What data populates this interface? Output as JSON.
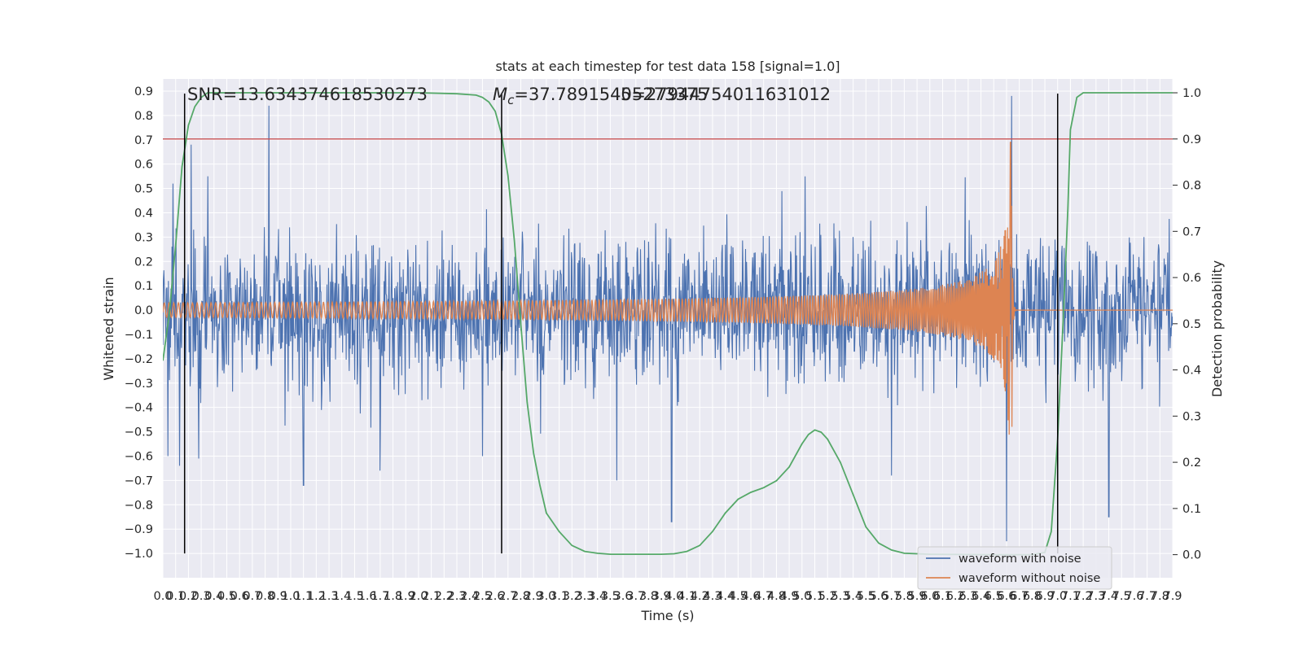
{
  "chart_data": {
    "type": "line",
    "title": "stats at each timestep for test data 158 [signal=1.0]",
    "xlabel": "Time (s)",
    "ylabel": "Whitened strain",
    "ylabel_right": "Detection probability",
    "xlim": [
      0.0,
      7.9
    ],
    "ylim": [
      -1.1,
      0.95
    ],
    "ylim_right": [
      -0.05,
      1.03
    ],
    "x_ticks": [
      0.0,
      0.1,
      0.2,
      0.3,
      0.4,
      0.5,
      0.6,
      0.7,
      0.8,
      0.9,
      1.0,
      1.1,
      1.2,
      1.3,
      1.4,
      1.5,
      1.6,
      1.7,
      1.8,
      1.9,
      2.0,
      2.1,
      2.2,
      2.3,
      2.4,
      2.5,
      2.6,
      2.7,
      2.8,
      2.9,
      3.0,
      3.1,
      3.2,
      3.3,
      3.4,
      3.5,
      3.6,
      3.7,
      3.8,
      3.9,
      4.0,
      4.1,
      4.2,
      4.3,
      4.4,
      4.5,
      4.6,
      4.7,
      4.8,
      4.9,
      5.0,
      5.1,
      5.2,
      5.3,
      5.4,
      5.5,
      5.6,
      5.7,
      5.8,
      5.9,
      6.0,
      6.1,
      6.2,
      6.3,
      6.4,
      6.5,
      6.6,
      6.7,
      6.8,
      6.9,
      7.0,
      7.1,
      7.2,
      7.3,
      7.4,
      7.5,
      7.6,
      7.7,
      7.8,
      7.9
    ],
    "y_ticks": [
      -1.0,
      -0.9,
      -0.8,
      -0.7,
      -0.6,
      -0.5,
      -0.4,
      -0.3,
      -0.2,
      -0.1,
      0.0,
      0.1,
      0.2,
      0.3,
      0.4,
      0.5,
      0.6,
      0.7,
      0.8,
      0.9
    ],
    "y_ticks_right": [
      0.0,
      0.1,
      0.2,
      0.3,
      0.4,
      0.5,
      0.6,
      0.7,
      0.8,
      0.9,
      1.0
    ],
    "grid": true,
    "legend_position": "lower-right",
    "annotations": {
      "snr": "SNR=13.634374618530273",
      "mc_symbol": "M",
      "mc_subscript": "c",
      "mc_value": "=37.78915405273375",
      "overlap_value": "5=27944754011631012"
    },
    "threshold_right": 0.9,
    "vertical_lines_x": [
      0.17,
      2.65,
      7.0
    ],
    "colors": {
      "noisy": "#4c72b0",
      "clean": "#dd8452",
      "probability": "#55a868",
      "threshold": "#c44e52",
      "vlines": "#000000",
      "background": "#eaeaf2",
      "grid": "#ffffff"
    },
    "series": [
      {
        "name": "waveform with noise",
        "role": "noisy",
        "duration": 7.9,
        "amplitude_band": [
          -0.35,
          0.35
        ],
        "peak_excursions": [
          {
            "x": 0.04,
            "y": -0.6
          },
          {
            "x": 0.08,
            "y": 0.52
          },
          {
            "x": 0.13,
            "y": -0.64
          },
          {
            "x": 0.22,
            "y": 0.68
          },
          {
            "x": 0.28,
            "y": -0.61
          },
          {
            "x": 0.35,
            "y": 0.55
          },
          {
            "x": 0.83,
            "y": 0.84
          },
          {
            "x": 1.1,
            "y": -0.72
          },
          {
            "x": 1.7,
            "y": -0.66
          },
          {
            "x": 2.5,
            "y": -0.6
          },
          {
            "x": 3.55,
            "y": -0.7
          },
          {
            "x": 3.98,
            "y": -0.87
          },
          {
            "x": 5.7,
            "y": -0.68
          },
          {
            "x": 6.64,
            "y": 0.88
          },
          {
            "x": 6.6,
            "y": -0.95
          },
          {
            "x": 7.4,
            "y": -0.85
          }
        ]
      },
      {
        "name": "waveform without noise",
        "role": "clean",
        "merger_time": 6.64,
        "peak_amplitude": 0.7
      },
      {
        "name": "",
        "role": "probability",
        "axis": "right",
        "x": [
          0.0,
          0.05,
          0.1,
          0.15,
          0.2,
          0.25,
          0.3,
          0.35,
          0.4,
          0.5,
          0.7,
          1.0,
          1.5,
          2.0,
          2.3,
          2.45,
          2.5,
          2.55,
          2.6,
          2.65,
          2.7,
          2.75,
          2.8,
          2.85,
          2.9,
          2.95,
          3.0,
          3.1,
          3.2,
          3.3,
          3.4,
          3.5,
          3.7,
          3.9,
          4.0,
          4.1,
          4.2,
          4.3,
          4.4,
          4.5,
          4.6,
          4.7,
          4.8,
          4.9,
          5.0,
          5.05,
          5.1,
          5.15,
          5.2,
          5.3,
          5.4,
          5.5,
          5.6,
          5.7,
          5.8,
          6.0,
          6.5,
          6.8,
          6.9,
          6.95,
          7.0,
          7.05,
          7.08,
          7.1,
          7.15,
          7.2,
          7.3,
          7.5,
          7.9
        ],
        "y": [
          0.42,
          0.52,
          0.67,
          0.84,
          0.93,
          0.97,
          0.99,
          1.0,
          1.0,
          1.0,
          1.0,
          1.0,
          1.0,
          1.0,
          0.998,
          0.995,
          0.99,
          0.98,
          0.96,
          0.91,
          0.82,
          0.68,
          0.5,
          0.33,
          0.22,
          0.15,
          0.09,
          0.05,
          0.02,
          0.007,
          0.003,
          0.001,
          0.001,
          0.001,
          0.002,
          0.007,
          0.02,
          0.05,
          0.09,
          0.12,
          0.135,
          0.145,
          0.16,
          0.19,
          0.24,
          0.26,
          0.27,
          0.265,
          0.25,
          0.2,
          0.13,
          0.06,
          0.025,
          0.01,
          0.003,
          0.001,
          0.0,
          0.0,
          0.005,
          0.05,
          0.25,
          0.55,
          0.75,
          0.92,
          0.99,
          1.0,
          1.0,
          1.0,
          1.0
        ]
      }
    ]
  }
}
